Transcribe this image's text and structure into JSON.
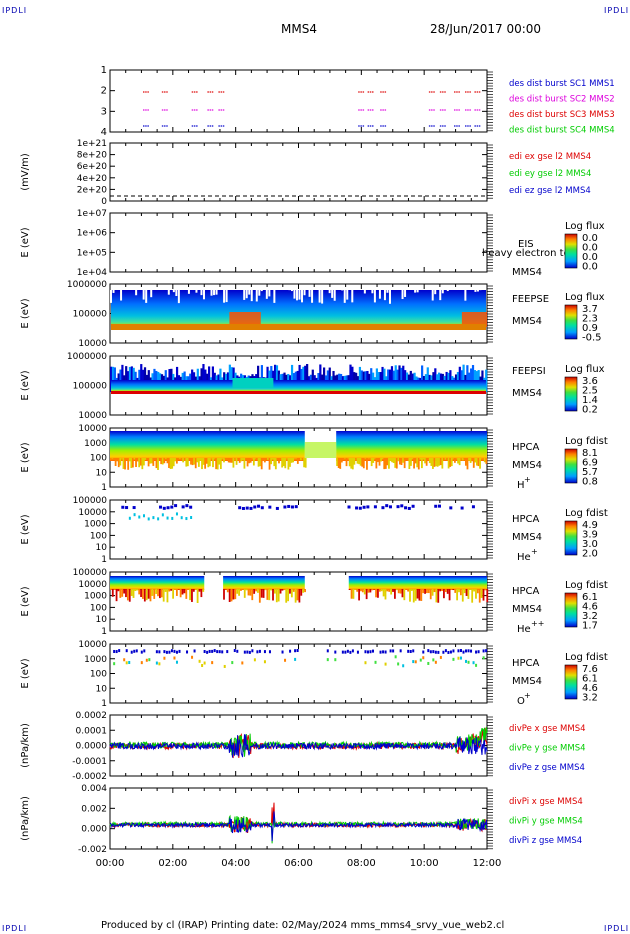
{
  "corners": {
    "tl": "IPDLI",
    "tr": "IPDLI",
    "bl": "IPDLI",
    "br": "IPDLI"
  },
  "header": {
    "title": "MMS4",
    "date": "28/Jun/2017 00:00"
  },
  "footer": {
    "text": "Produced by cl (IRAP)   Printing date: 02/May/2024   mms_mms4_srvy_vue_web2.cl"
  },
  "time_axis": {
    "ticks": [
      "00:00",
      "02:00",
      "04:00",
      "06:00",
      "08:00",
      "10:00",
      "12:00"
    ]
  },
  "colors": {
    "red": "#dd0000",
    "green": "#00cc00",
    "blue": "#0000cc",
    "magenta": "#dd00dd"
  },
  "chart_data": [
    {
      "type": "scatter",
      "id": "burst",
      "yticks": [
        "1",
        "2",
        "3",
        "4"
      ],
      "legend": [
        {
          "text": "des dist burst SC1 MMS1",
          "color": "#0000cc"
        },
        {
          "text": "des dist burst SC2 MMS2",
          "color": "#dd00dd"
        },
        {
          "text": "des dist burst SC3 MMS3",
          "color": "#dd0000"
        },
        {
          "text": "des dist burst SC4 MMS4",
          "color": "#00cc00"
        }
      ],
      "segments_hours": [
        [
          1.05,
          1.25
        ],
        [
          1.65,
          1.8
        ],
        [
          2.6,
          2.8
        ],
        [
          3.1,
          3.25
        ],
        [
          3.45,
          3.6
        ],
        [
          7.9,
          8.05
        ],
        [
          8.2,
          8.35
        ],
        [
          8.6,
          8.8
        ],
        [
          10.15,
          10.3
        ],
        [
          10.5,
          10.65
        ],
        [
          10.95,
          11.1
        ],
        [
          11.3,
          11.5
        ],
        [
          11.6,
          11.75
        ]
      ]
    },
    {
      "type": "line",
      "id": "edi",
      "ylabel": "(mV/m)",
      "yticks": [
        "1e+21",
        "8e+20",
        "6e+20",
        "4e+20",
        "2e+20",
        "0"
      ],
      "legend": [
        {
          "text": "edi ex gse l2 MMS4",
          "color": "#dd0000"
        },
        {
          "text": "edi ey gse l2 MMS4",
          "color": "#00cc00"
        },
        {
          "text": "edi ez gse l2 MMS4",
          "color": "#0000cc"
        }
      ]
    },
    {
      "type": "heatmap",
      "id": "eis",
      "ylabel": "E (eV)",
      "yticks": [
        "1e+07",
        "1e+06",
        "1e+05",
        "1e+04"
      ],
      "instrument": "EIS",
      "spacecraft": "MMS4",
      "overlay": "heavy electron to",
      "cbar_title": "Log flux",
      "cbar_ticks": [
        "0.0",
        "0.0",
        "0.0",
        "0.0"
      ]
    },
    {
      "type": "heatmap",
      "id": "feepse",
      "ylabel": "E (eV)",
      "yticks": [
        "1000000",
        "100000",
        "10000"
      ],
      "instrument": "FEEPSE",
      "spacecraft": "MMS4",
      "cbar_title": "Log flux",
      "cbar_ticks": [
        "3.7",
        "2.3",
        "0.9",
        "-0.5"
      ]
    },
    {
      "type": "heatmap",
      "id": "feepsi",
      "ylabel": "E (eV)",
      "yticks": [
        "1000000",
        "100000",
        "10000"
      ],
      "instrument": "FEEPSI",
      "spacecraft": "MMS4",
      "cbar_title": "Log flux",
      "cbar_ticks": [
        "3.6",
        "2.5",
        "1.4",
        "0.2"
      ]
    },
    {
      "type": "heatmap",
      "id": "hpca-h",
      "ylabel": "E (eV)",
      "yticks": [
        "10000",
        "1000",
        "100",
        "10",
        "1"
      ],
      "instrument": "HPCA",
      "spacecraft": "MMS4",
      "species": "H",
      "charge": "+",
      "cbar_title": "Log fdist",
      "cbar_ticks": [
        "8.1",
        "6.9",
        "5.7",
        "0.8"
      ]
    },
    {
      "type": "heatmap",
      "id": "hpca-he",
      "ylabel": "E (eV)",
      "yticks": [
        "100000",
        "10000",
        "1000",
        "100",
        "10",
        "1"
      ],
      "instrument": "HPCA",
      "spacecraft": "MMS4",
      "species": "He",
      "charge": "+",
      "cbar_title": "Log fdist",
      "cbar_ticks": [
        "4.9",
        "3.9",
        "3.0",
        "2.0"
      ]
    },
    {
      "type": "heatmap",
      "id": "hpca-he2",
      "ylabel": "E (eV)",
      "yticks": [
        "100000",
        "10000",
        "1000",
        "100",
        "10",
        "1"
      ],
      "instrument": "HPCA",
      "spacecraft": "MMS4",
      "species": "He",
      "charge": "++",
      "cbar_title": "Log fdist",
      "cbar_ticks": [
        "6.1",
        "4.6",
        "3.2",
        "1.7"
      ]
    },
    {
      "type": "heatmap",
      "id": "hpca-o",
      "ylabel": "E (eV)",
      "yticks": [
        "10000",
        "1000",
        "100",
        "10",
        "1"
      ],
      "instrument": "HPCA",
      "spacecraft": "MMS4",
      "species": "O",
      "charge": "+",
      "cbar_title": "Log fdist",
      "cbar_ticks": [
        "7.6",
        "6.1",
        "4.6",
        "3.2"
      ]
    },
    {
      "type": "line",
      "id": "divpe",
      "ylabel": "(nPa/km)",
      "yticks": [
        "0.0002",
        "0.0001",
        "0.0000",
        "-0.0001",
        "-0.0002"
      ],
      "ylim": [
        -0.00025,
        0.00028
      ],
      "legend": [
        {
          "text": "divPe x gse MMS4",
          "color": "#dd0000"
        },
        {
          "text": "divPe y gse MMS4",
          "color": "#00cc00"
        },
        {
          "text": "divPe z gse MMS4",
          "color": "#0000cc"
        }
      ]
    },
    {
      "type": "line",
      "id": "divpi",
      "ylabel": "(nPa/km)",
      "yticks": [
        "0.004",
        "0.002",
        "0.000",
        "-0.002"
      ],
      "ylim": [
        -0.0032,
        0.0052
      ],
      "legend": [
        {
          "text": "divPi x gse MMS4",
          "color": "#dd0000"
        },
        {
          "text": "divPi y gse MMS4",
          "color": "#00cc00"
        },
        {
          "text": "divPi z gse MMS4",
          "color": "#0000cc"
        }
      ]
    }
  ]
}
